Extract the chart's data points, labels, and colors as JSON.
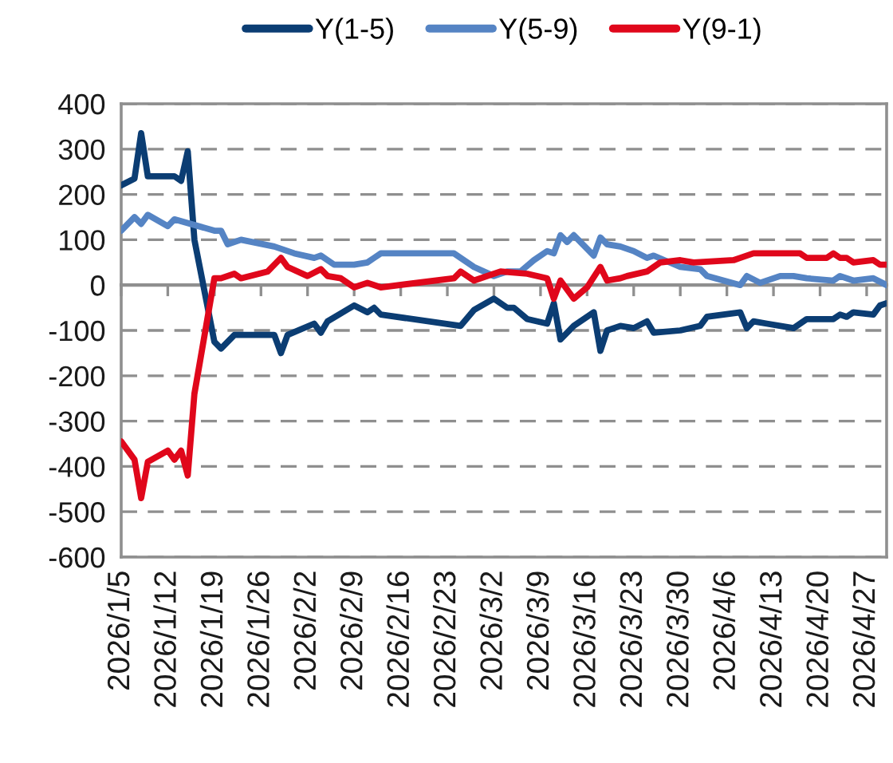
{
  "chart_data": {
    "type": "line",
    "series": [
      {
        "name": "Y(1-5)",
        "color": "#0b3d73",
        "x": [
          "2026-01-05",
          "2026-01-07",
          "2026-01-08",
          "2026-01-09",
          "2026-01-13",
          "2026-01-14",
          "2026-01-15",
          "2026-01-16",
          "2026-01-19",
          "2026-01-20",
          "2026-01-22",
          "2026-01-28",
          "2026-01-29",
          "2026-01-30",
          "2026-02-03",
          "2026-02-04",
          "2026-02-05",
          "2026-02-09",
          "2026-02-11",
          "2026-02-12",
          "2026-02-13",
          "2026-02-25",
          "2026-02-27",
          "2026-03-02",
          "2026-03-04",
          "2026-03-05",
          "2026-03-07",
          "2026-03-10",
          "2026-03-11",
          "2026-03-12",
          "2026-03-14",
          "2026-03-17",
          "2026-03-18",
          "2026-03-19",
          "2026-03-21",
          "2026-03-23",
          "2026-03-25",
          "2026-03-26",
          "2026-03-30",
          "2026-04-02",
          "2026-04-03",
          "2026-04-08",
          "2026-04-09",
          "2026-04-10",
          "2026-04-12",
          "2026-04-16",
          "2026-04-18",
          "2026-04-22",
          "2026-04-23",
          "2026-04-24",
          "2026-04-25",
          "2026-04-28",
          "2026-04-29",
          "2026-04-30"
        ],
        "values": [
          220,
          235,
          335,
          240,
          240,
          230,
          295,
          100,
          -125,
          -140,
          -110,
          -110,
          -150,
          -110,
          -85,
          -105,
          -80,
          -45,
          -60,
          -50,
          -65,
          -90,
          -55,
          -30,
          -50,
          -50,
          -75,
          -85,
          -40,
          -120,
          -90,
          -60,
          -145,
          -100,
          -90,
          -95,
          -80,
          -105,
          -100,
          -90,
          -70,
          -60,
          -95,
          -80,
          -85,
          -95,
          -75,
          -75,
          -65,
          -70,
          -60,
          -65,
          -45,
          -40
        ]
      },
      {
        "name": "Y(5-9)",
        "color": "#5584c4",
        "x": [
          "2026-01-05",
          "2026-01-07",
          "2026-01-08",
          "2026-01-09",
          "2026-01-12",
          "2026-01-13",
          "2026-01-19",
          "2026-01-20",
          "2026-01-21",
          "2026-01-23",
          "2026-01-28",
          "2026-01-31",
          "2026-02-03",
          "2026-02-04",
          "2026-02-06",
          "2026-02-09",
          "2026-02-11",
          "2026-02-12",
          "2026-02-13",
          "2026-02-24",
          "2026-02-27",
          "2026-03-02",
          "2026-03-04",
          "2026-03-06",
          "2026-03-08",
          "2026-03-10",
          "2026-03-11",
          "2026-03-12",
          "2026-03-13",
          "2026-03-14",
          "2026-03-17",
          "2026-03-18",
          "2026-03-19",
          "2026-03-21",
          "2026-03-23",
          "2026-03-25",
          "2026-03-26",
          "2026-03-30",
          "2026-04-02",
          "2026-04-03",
          "2026-04-08",
          "2026-04-09",
          "2026-04-11",
          "2026-04-14",
          "2026-04-16",
          "2026-04-18",
          "2026-04-22",
          "2026-04-23",
          "2026-04-25",
          "2026-04-28",
          "2026-04-30"
        ],
        "values": [
          120,
          150,
          135,
          155,
          130,
          145,
          120,
          120,
          90,
          100,
          85,
          70,
          60,
          65,
          45,
          45,
          50,
          60,
          70,
          70,
          40,
          20,
          30,
          30,
          55,
          75,
          70,
          110,
          95,
          110,
          65,
          105,
          90,
          85,
          75,
          60,
          65,
          40,
          35,
          20,
          0,
          20,
          5,
          20,
          20,
          15,
          10,
          20,
          10,
          15,
          0
        ]
      },
      {
        "name": "Y(9-1)",
        "color": "#e0071b",
        "x": [
          "2026-01-05",
          "2026-01-07",
          "2026-01-08",
          "2026-01-09",
          "2026-01-12",
          "2026-01-13",
          "2026-01-14",
          "2026-01-15",
          "2026-01-16",
          "2026-01-19",
          "2026-01-20",
          "2026-01-22",
          "2026-01-23",
          "2026-01-27",
          "2026-01-29",
          "2026-01-30",
          "2026-02-02",
          "2026-02-04",
          "2026-02-05",
          "2026-02-07",
          "2026-02-09",
          "2026-02-11",
          "2026-02-13",
          "2026-02-24",
          "2026-02-25",
          "2026-02-27",
          "2026-03-03",
          "2026-03-07",
          "2026-03-10",
          "2026-03-11",
          "2026-03-12",
          "2026-03-14",
          "2026-03-16",
          "2026-03-18",
          "2026-03-19",
          "2026-03-21",
          "2026-03-22",
          "2026-03-25",
          "2026-03-27",
          "2026-03-30",
          "2026-04-01",
          "2026-04-07",
          "2026-04-08",
          "2026-04-10",
          "2026-04-17",
          "2026-04-18",
          "2026-04-21",
          "2026-04-22",
          "2026-04-23",
          "2026-04-24",
          "2026-04-25",
          "2026-04-28",
          "2026-04-29",
          "2026-04-30"
        ],
        "values": [
          -345,
          -385,
          -470,
          -390,
          -365,
          -385,
          -365,
          -420,
          -240,
          15,
          15,
          25,
          15,
          30,
          60,
          40,
          20,
          35,
          20,
          15,
          -5,
          5,
          -5,
          15,
          30,
          10,
          30,
          25,
          15,
          -30,
          10,
          -30,
          -5,
          40,
          10,
          15,
          20,
          30,
          50,
          55,
          50,
          55,
          60,
          70,
          70,
          60,
          60,
          70,
          60,
          60,
          50,
          55,
          45,
          45
        ]
      }
    ],
    "xlim": [
      "2026-01-05",
      "2026-04-30"
    ],
    "xticks": [
      {
        "value": "2026-01-05",
        "label": "2026/1/5"
      },
      {
        "value": "2026-01-12",
        "label": "2026/1/12"
      },
      {
        "value": "2026-01-19",
        "label": "2026/1/19"
      },
      {
        "value": "2026-01-26",
        "label": "2026/1/26"
      },
      {
        "value": "2026-02-02",
        "label": "2026/2/2"
      },
      {
        "value": "2026-02-09",
        "label": "2026/2/9"
      },
      {
        "value": "2026-02-16",
        "label": "2026/2/16"
      },
      {
        "value": "2026-02-23",
        "label": "2026/2/23"
      },
      {
        "value": "2026-03-02",
        "label": "2026/3/2"
      },
      {
        "value": "2026-03-09",
        "label": "2026/3/9"
      },
      {
        "value": "2026-03-16",
        "label": "2026/3/16"
      },
      {
        "value": "2026-03-23",
        "label": "2026/3/23"
      },
      {
        "value": "2026-03-30",
        "label": "2026/3/30"
      },
      {
        "value": "2026-04-06",
        "label": "2026/4/6"
      },
      {
        "value": "2026-04-13",
        "label": "2026/4/13"
      },
      {
        "value": "2026-04-20",
        "label": "2026/4/20"
      },
      {
        "value": "2026-04-27",
        "label": "2026/4/27"
      }
    ],
    "ylim": [
      -600,
      400
    ],
    "yticks": [
      -600,
      -500,
      -400,
      -300,
      -200,
      -100,
      0,
      100,
      200,
      300,
      400
    ],
    "grid": "y",
    "legend": "top",
    "line_style": "solid"
  }
}
